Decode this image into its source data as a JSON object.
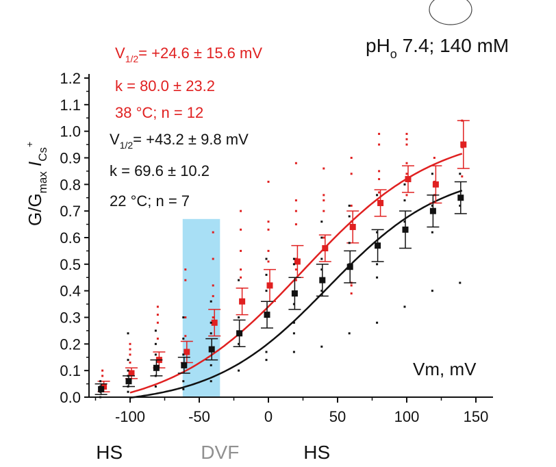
{
  "chart_data": {
    "type": "scatter",
    "title": "pH",
    "title_sub": "o",
    "title_rest": " 7.4; 140 mM",
    "ylabel_parts": [
      "G/G",
      "max",
      " I",
      "Cs",
      "+"
    ],
    "xlabel": "Vm, mV",
    "xlim": [
      -130,
      155
    ],
    "ylim": [
      0,
      1.2
    ],
    "x_ticks": [
      -100,
      -50,
      0,
      50,
      100,
      150
    ],
    "x_tick_labels": [
      "-100",
      "-50",
      "0",
      "50",
      "100",
      "150"
    ],
    "y_ticks": [
      0.0,
      0.1,
      0.2,
      0.3,
      0.4,
      0.5,
      0.6,
      0.7,
      0.8,
      0.9,
      1.0,
      1.1,
      1.2
    ],
    "y_tick_labels": [
      "0.0",
      "0.1",
      "0.2",
      "0.3",
      "0.4",
      "0.5",
      "0.6",
      "0.7",
      "0.8",
      "0.9",
      "1.0",
      "1.1",
      "1.2"
    ],
    "shaded_region": {
      "x0": -62,
      "x1": -35,
      "y0": 0,
      "y1": 0.67,
      "color": "#a8dff5"
    },
    "series": [
      {
        "name": "38 °C",
        "color": "#e02020",
        "x": [
          -120,
          -100,
          -80,
          -60,
          -40,
          -20,
          0,
          20,
          40,
          60,
          80,
          100,
          120,
          140
        ],
        "y": [
          0.04,
          0.09,
          0.14,
          0.17,
          0.28,
          0.36,
          0.42,
          0.51,
          0.56,
          0.64,
          0.73,
          0.82,
          0.8,
          0.95
        ],
        "err": [
          0.02,
          0.02,
          0.03,
          0.04,
          0.05,
          0.05,
          0.06,
          0.06,
          0.05,
          0.06,
          0.05,
          0.05,
          0.07,
          0.09
        ],
        "fit": {
          "v_half": 24.6,
          "k": 80.0
        },
        "annotations": [
          "V1/2= +24.6 ± 15.6 mV",
          "k = 80.0 ± 23.2",
          "38 °C; n = 12"
        ],
        "scatter_dots": [
          [
            -120,
            0.08
          ],
          [
            -120,
            0.1
          ],
          [
            -100,
            0.2
          ],
          [
            -100,
            0.18
          ],
          [
            -100,
            0.16
          ],
          [
            -100,
            0.13
          ],
          [
            -80,
            0.34
          ],
          [
            -80,
            0.31
          ],
          [
            -80,
            0.28
          ],
          [
            -80,
            0.22
          ],
          [
            -60,
            0.48
          ],
          [
            -60,
            0.44
          ],
          [
            -60,
            0.3
          ],
          [
            -60,
            0.23
          ],
          [
            -40,
            0.62
          ],
          [
            -40,
            0.52
          ],
          [
            -40,
            0.42
          ],
          [
            -40,
            0.38
          ],
          [
            -40,
            0.3
          ],
          [
            -20,
            0.7
          ],
          [
            -20,
            0.63
          ],
          [
            -20,
            0.55
          ],
          [
            -20,
            0.48
          ],
          [
            -20,
            0.45
          ],
          [
            0,
            0.81
          ],
          [
            0,
            0.66
          ],
          [
            0,
            0.63
          ],
          [
            0,
            0.55
          ],
          [
            0,
            0.51
          ],
          [
            20,
            0.88
          ],
          [
            20,
            0.74
          ],
          [
            20,
            0.7
          ],
          [
            20,
            0.65
          ],
          [
            20,
            0.52
          ],
          [
            20,
            0.48
          ],
          [
            20,
            0.44
          ],
          [
            40,
            0.86
          ],
          [
            40,
            0.76
          ],
          [
            40,
            0.74
          ],
          [
            40,
            0.7
          ],
          [
            40,
            0.6
          ],
          [
            60,
            0.9
          ],
          [
            60,
            0.84
          ],
          [
            60,
            0.72
          ],
          [
            60,
            0.66
          ],
          [
            60,
            0.43
          ],
          [
            60,
            0.42
          ],
          [
            60,
            0.39
          ],
          [
            80,
            0.99
          ],
          [
            80,
            0.95
          ],
          [
            80,
            0.85
          ],
          [
            80,
            0.82
          ],
          [
            80,
            0.77
          ],
          [
            100,
            0.99
          ],
          [
            100,
            0.97
          ],
          [
            100,
            0.95
          ],
          [
            100,
            0.88
          ],
          [
            100,
            0.84
          ],
          [
            100,
            0.76
          ],
          [
            120,
            0.9
          ],
          [
            120,
            0.81
          ],
          [
            120,
            0.76
          ],
          [
            140,
            1.04
          ],
          [
            140,
            0.94
          ],
          [
            140,
            0.83
          ]
        ]
      },
      {
        "name": "22 °C",
        "color": "#111111",
        "x": [
          -120,
          -100,
          -80,
          -60,
          -40,
          -20,
          0,
          20,
          40,
          60,
          80,
          100,
          120,
          140
        ],
        "y": [
          0.03,
          0.06,
          0.11,
          0.12,
          0.18,
          0.24,
          0.31,
          0.39,
          0.44,
          0.49,
          0.57,
          0.63,
          0.7,
          0.75
        ],
        "err": [
          0.02,
          0.02,
          0.03,
          0.03,
          0.04,
          0.05,
          0.05,
          0.06,
          0.06,
          0.06,
          0.06,
          0.07,
          0.06,
          0.06
        ],
        "fit": {
          "v_half": 43.2,
          "k": 69.6
        },
        "annotations": [
          "V1/2= +43.2 ± 9.8 mV",
          "k = 69.6 ± 10.2",
          "22 °C; n = 7"
        ],
        "scatter_dots": [
          [
            -120,
            0.06
          ],
          [
            -120,
            0.04
          ],
          [
            -120,
            0.02
          ],
          [
            -120,
            0.0
          ],
          [
            -100,
            0.24
          ],
          [
            -100,
            0.14
          ],
          [
            -100,
            0.1
          ],
          [
            -100,
            0.08
          ],
          [
            -100,
            0.04
          ],
          [
            -100,
            0.02
          ],
          [
            -80,
            0.25
          ],
          [
            -80,
            0.2
          ],
          [
            -80,
            0.16
          ],
          [
            -80,
            0.08
          ],
          [
            -80,
            0.04
          ],
          [
            -60,
            0.3
          ],
          [
            -60,
            0.22
          ],
          [
            -60,
            0.16
          ],
          [
            -60,
            0.06
          ],
          [
            -60,
            0.03
          ],
          [
            -40,
            0.36
          ],
          [
            -40,
            0.28
          ],
          [
            -40,
            0.24
          ],
          [
            -40,
            0.12
          ],
          [
            -40,
            0.06
          ],
          [
            -20,
            0.44
          ],
          [
            -20,
            0.3
          ],
          [
            -20,
            0.2
          ],
          [
            -20,
            0.1
          ],
          [
            0,
            0.52
          ],
          [
            0,
            0.46
          ],
          [
            0,
            0.4
          ],
          [
            0,
            0.17
          ],
          [
            0,
            0.14
          ],
          [
            20,
            0.52
          ],
          [
            20,
            0.5
          ],
          [
            20,
            0.35
          ],
          [
            20,
            0.28
          ],
          [
            20,
            0.24
          ],
          [
            20,
            0.17
          ],
          [
            40,
            0.66
          ],
          [
            40,
            0.6
          ],
          [
            40,
            0.52
          ],
          [
            40,
            0.48
          ],
          [
            40,
            0.4
          ],
          [
            40,
            0.19
          ],
          [
            60,
            0.72
          ],
          [
            60,
            0.68
          ],
          [
            60,
            0.58
          ],
          [
            60,
            0.5
          ],
          [
            60,
            0.24
          ],
          [
            80,
            0.76
          ],
          [
            80,
            0.62
          ],
          [
            80,
            0.5
          ],
          [
            80,
            0.45
          ],
          [
            80,
            0.28
          ],
          [
            100,
            0.8
          ],
          [
            100,
            0.74
          ],
          [
            100,
            0.66
          ],
          [
            100,
            0.34
          ],
          [
            120,
            0.84
          ],
          [
            120,
            0.72
          ],
          [
            120,
            0.62
          ],
          [
            120,
            0.4
          ],
          [
            140,
            0.84
          ],
          [
            140,
            0.72
          ],
          [
            140,
            0.43
          ]
        ]
      }
    ],
    "bottom_labels": [
      {
        "text": "HS",
        "color": "#111111",
        "x": -115
      },
      {
        "text": "DVF",
        "color": "#909090",
        "x": -35
      },
      {
        "text": "HS",
        "color": "#111111",
        "x": 35
      }
    ]
  }
}
